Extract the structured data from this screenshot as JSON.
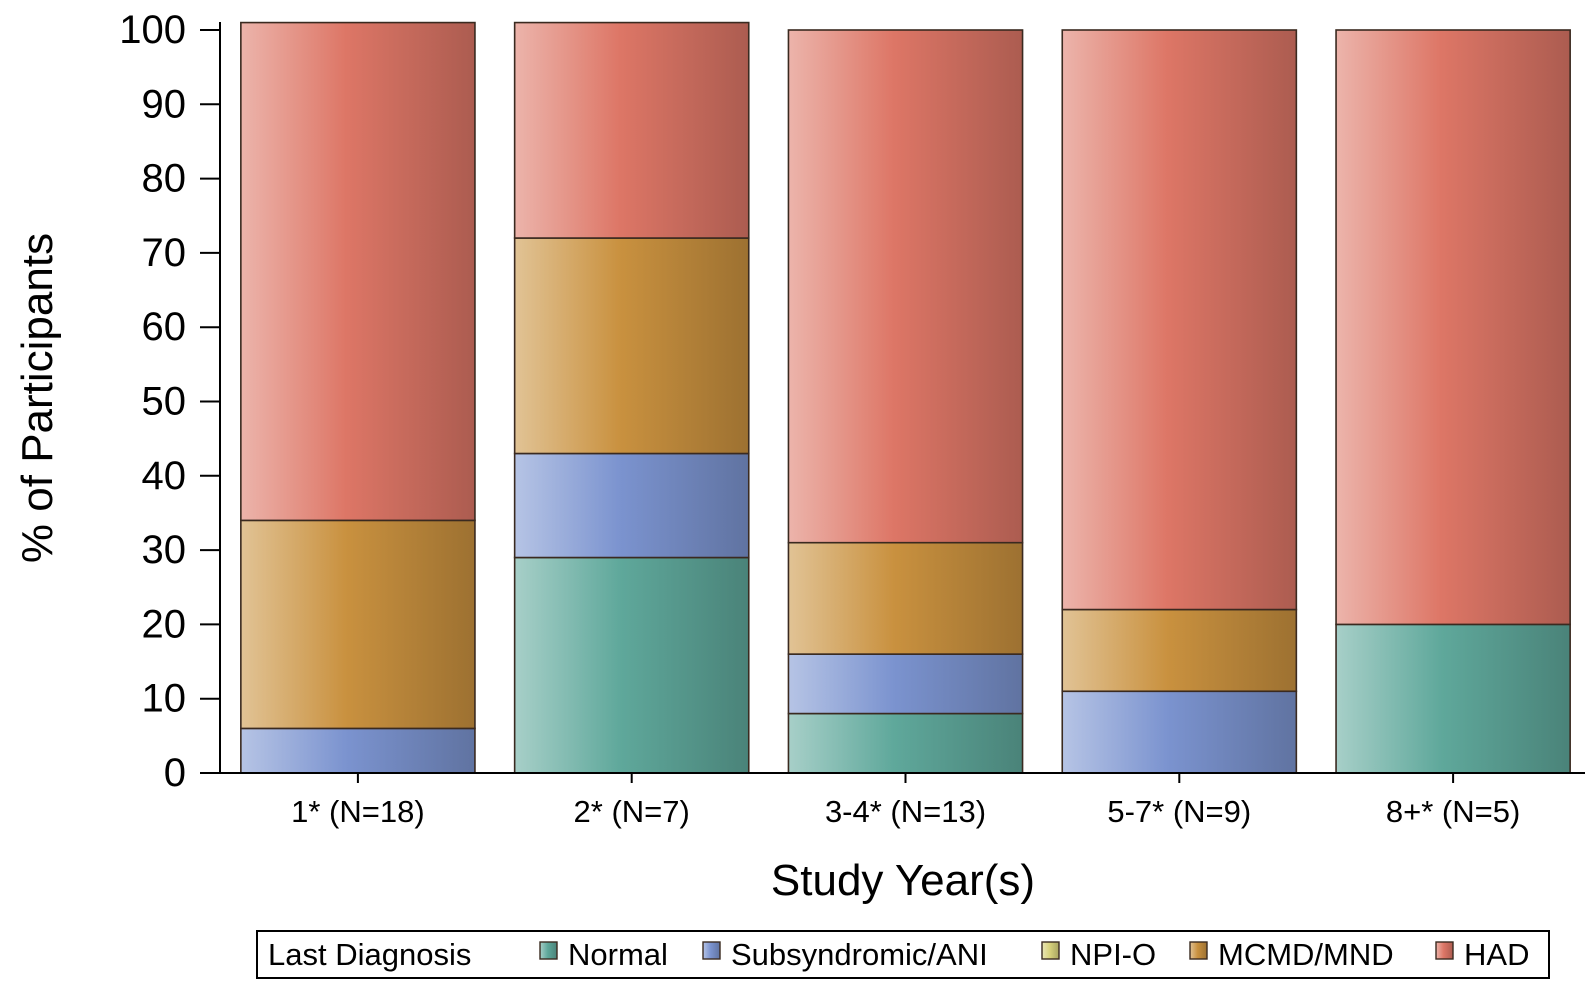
{
  "chart_data": {
    "type": "bar",
    "stacked": true,
    "percent_stacked": true,
    "xlabel": "Study Year(s)",
    "ylabel": "% of Participants",
    "ylim": [
      0,
      100
    ],
    "yticks": [
      0,
      10,
      20,
      30,
      40,
      50,
      60,
      70,
      80,
      90,
      100
    ],
    "grid": false,
    "categories": [
      "1* (N=18)",
      "2* (N=7)",
      "3-4* (N=13)",
      "5-7* (N=9)",
      "8+* (N=5)"
    ],
    "legend": {
      "title": "Last Diagnosis",
      "placement": "bottom"
    },
    "series": [
      {
        "name": "Normal",
        "color": "#5fa89b",
        "values": [
          0,
          29,
          8,
          0,
          20
        ]
      },
      {
        "name": "Subsyndromic/ANI",
        "color": "#7b93cf",
        "values": [
          6,
          14,
          8,
          11,
          0
        ]
      },
      {
        "name": "NPI-O",
        "color": "#d8d27c",
        "values": [
          0,
          0,
          0,
          0,
          0
        ]
      },
      {
        "name": "MCMD/MND",
        "color": "#c9913f",
        "values": [
          28,
          29,
          15,
          11,
          0
        ]
      },
      {
        "name": "HAD",
        "color": "#dd7666",
        "values": [
          67,
          29,
          69,
          78,
          80
        ]
      }
    ]
  }
}
